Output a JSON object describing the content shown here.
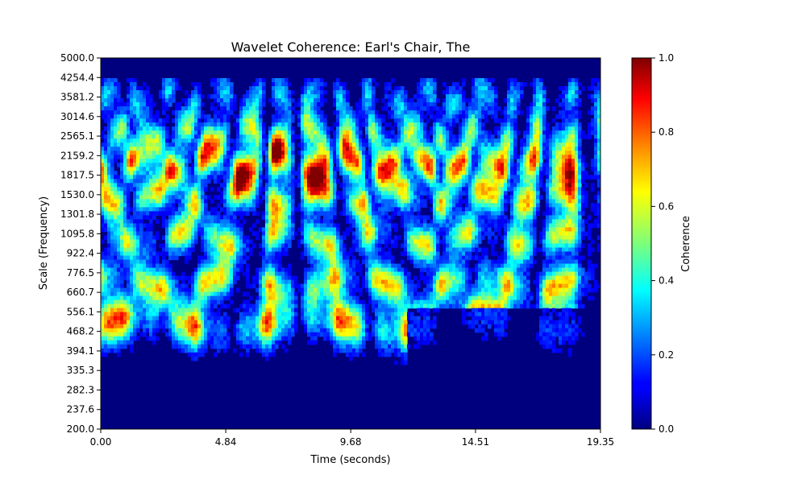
{
  "chart_data": {
    "type": "heatmap",
    "title": "Wavelet Coherence: Earl's Chair, The",
    "xlabel": "Time (seconds)",
    "ylabel": "Scale (Frequency)",
    "x_ticks": [
      "0.00",
      "4.84",
      "9.68",
      "14.51",
      "19.35"
    ],
    "x_tick_values": [
      0.0,
      4.84,
      9.68,
      14.51,
      19.35
    ],
    "xlim": [
      0.0,
      19.35
    ],
    "y_ticks": [
      "200.0",
      "237.6",
      "282.3",
      "335.3",
      "394.1",
      "468.2",
      "556.1",
      "660.7",
      "776.5",
      "922.4",
      "1095.8",
      "1301.8",
      "1530.0",
      "1817.5",
      "2159.2",
      "2565.1",
      "3014.6",
      "3581.2",
      "4254.4",
      "5000.0"
    ],
    "y_tick_values": [
      200.0,
      237.6,
      282.3,
      335.3,
      394.1,
      468.2,
      556.1,
      660.7,
      776.5,
      922.4,
      1095.8,
      1301.8,
      1530.0,
      1817.5,
      2159.2,
      2565.1,
      3014.6,
      3581.2,
      4254.4,
      5000.0
    ],
    "ylim": [
      200.0,
      5000.0
    ],
    "colorbar": {
      "label": "Coherence",
      "colormap": "jet",
      "ticks": [
        "0.0",
        "0.2",
        "0.4",
        "0.6",
        "0.8",
        "1.0"
      ],
      "range": [
        0.0,
        1.0
      ]
    },
    "grid": false
  }
}
